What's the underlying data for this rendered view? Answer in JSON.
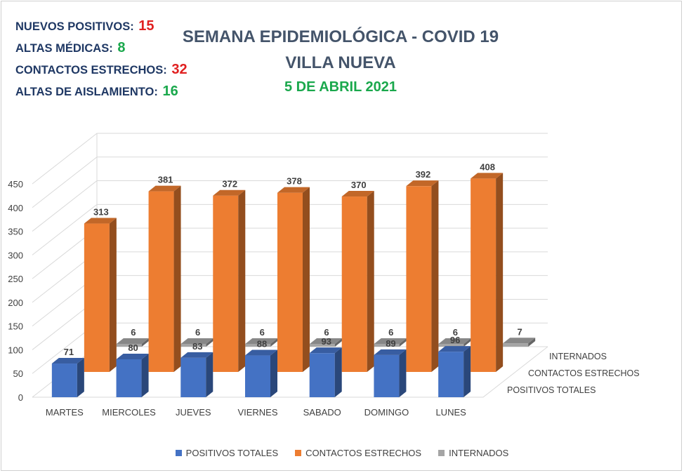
{
  "summary": {
    "items": [
      {
        "label": "NUEVOS POSITIVOS:",
        "value": "15",
        "color": "#e02020"
      },
      {
        "label": "ALTAS MÉDICAS:",
        "value": "8",
        "color": "#1aa84c"
      },
      {
        "label": "CONTACTOS ESTRECHOS:",
        "value": "32",
        "color": "#e02020"
      },
      {
        "label": "ALTAS DE AISLAMIENTO:",
        "value": "16",
        "color": "#1aa84c"
      }
    ]
  },
  "header": {
    "title": "SEMANA EPIDEMIOLÓGICA - COVID 19",
    "subtitle": "VILLA NUEVA",
    "date": "5 DE ABRIL 2021"
  },
  "chart_data": {
    "type": "bar",
    "style": "3d-column",
    "categories": [
      "MARTES",
      "MIERCOLES",
      "JUEVES",
      "VIERNES",
      "SABADO",
      "DOMINGO",
      "LUNES"
    ],
    "series": [
      {
        "name": "POSITIVOS TOTALES",
        "color": "#4472c4",
        "values": [
          71,
          80,
          83,
          88,
          93,
          89,
          96
        ]
      },
      {
        "name": "CONTACTOS ESTRECHOS",
        "color": "#ed7d31",
        "values": [
          313,
          381,
          372,
          378,
          370,
          392,
          408
        ]
      },
      {
        "name": "INTERNADOS",
        "color": "#a5a5a5",
        "values": [
          6,
          6,
          6,
          6,
          6,
          6,
          7
        ]
      }
    ],
    "ylim": [
      0,
      450
    ],
    "yticks": [
      "0",
      "50",
      "100",
      "150",
      "200",
      "250",
      "300",
      "350",
      "400",
      "450"
    ],
    "grid": true,
    "legend": "bottom",
    "depth_labels": [
      "POSITIVOS TOTALES",
      "CONTACTOS ESTRECHOS",
      "INTERNADOS"
    ]
  }
}
